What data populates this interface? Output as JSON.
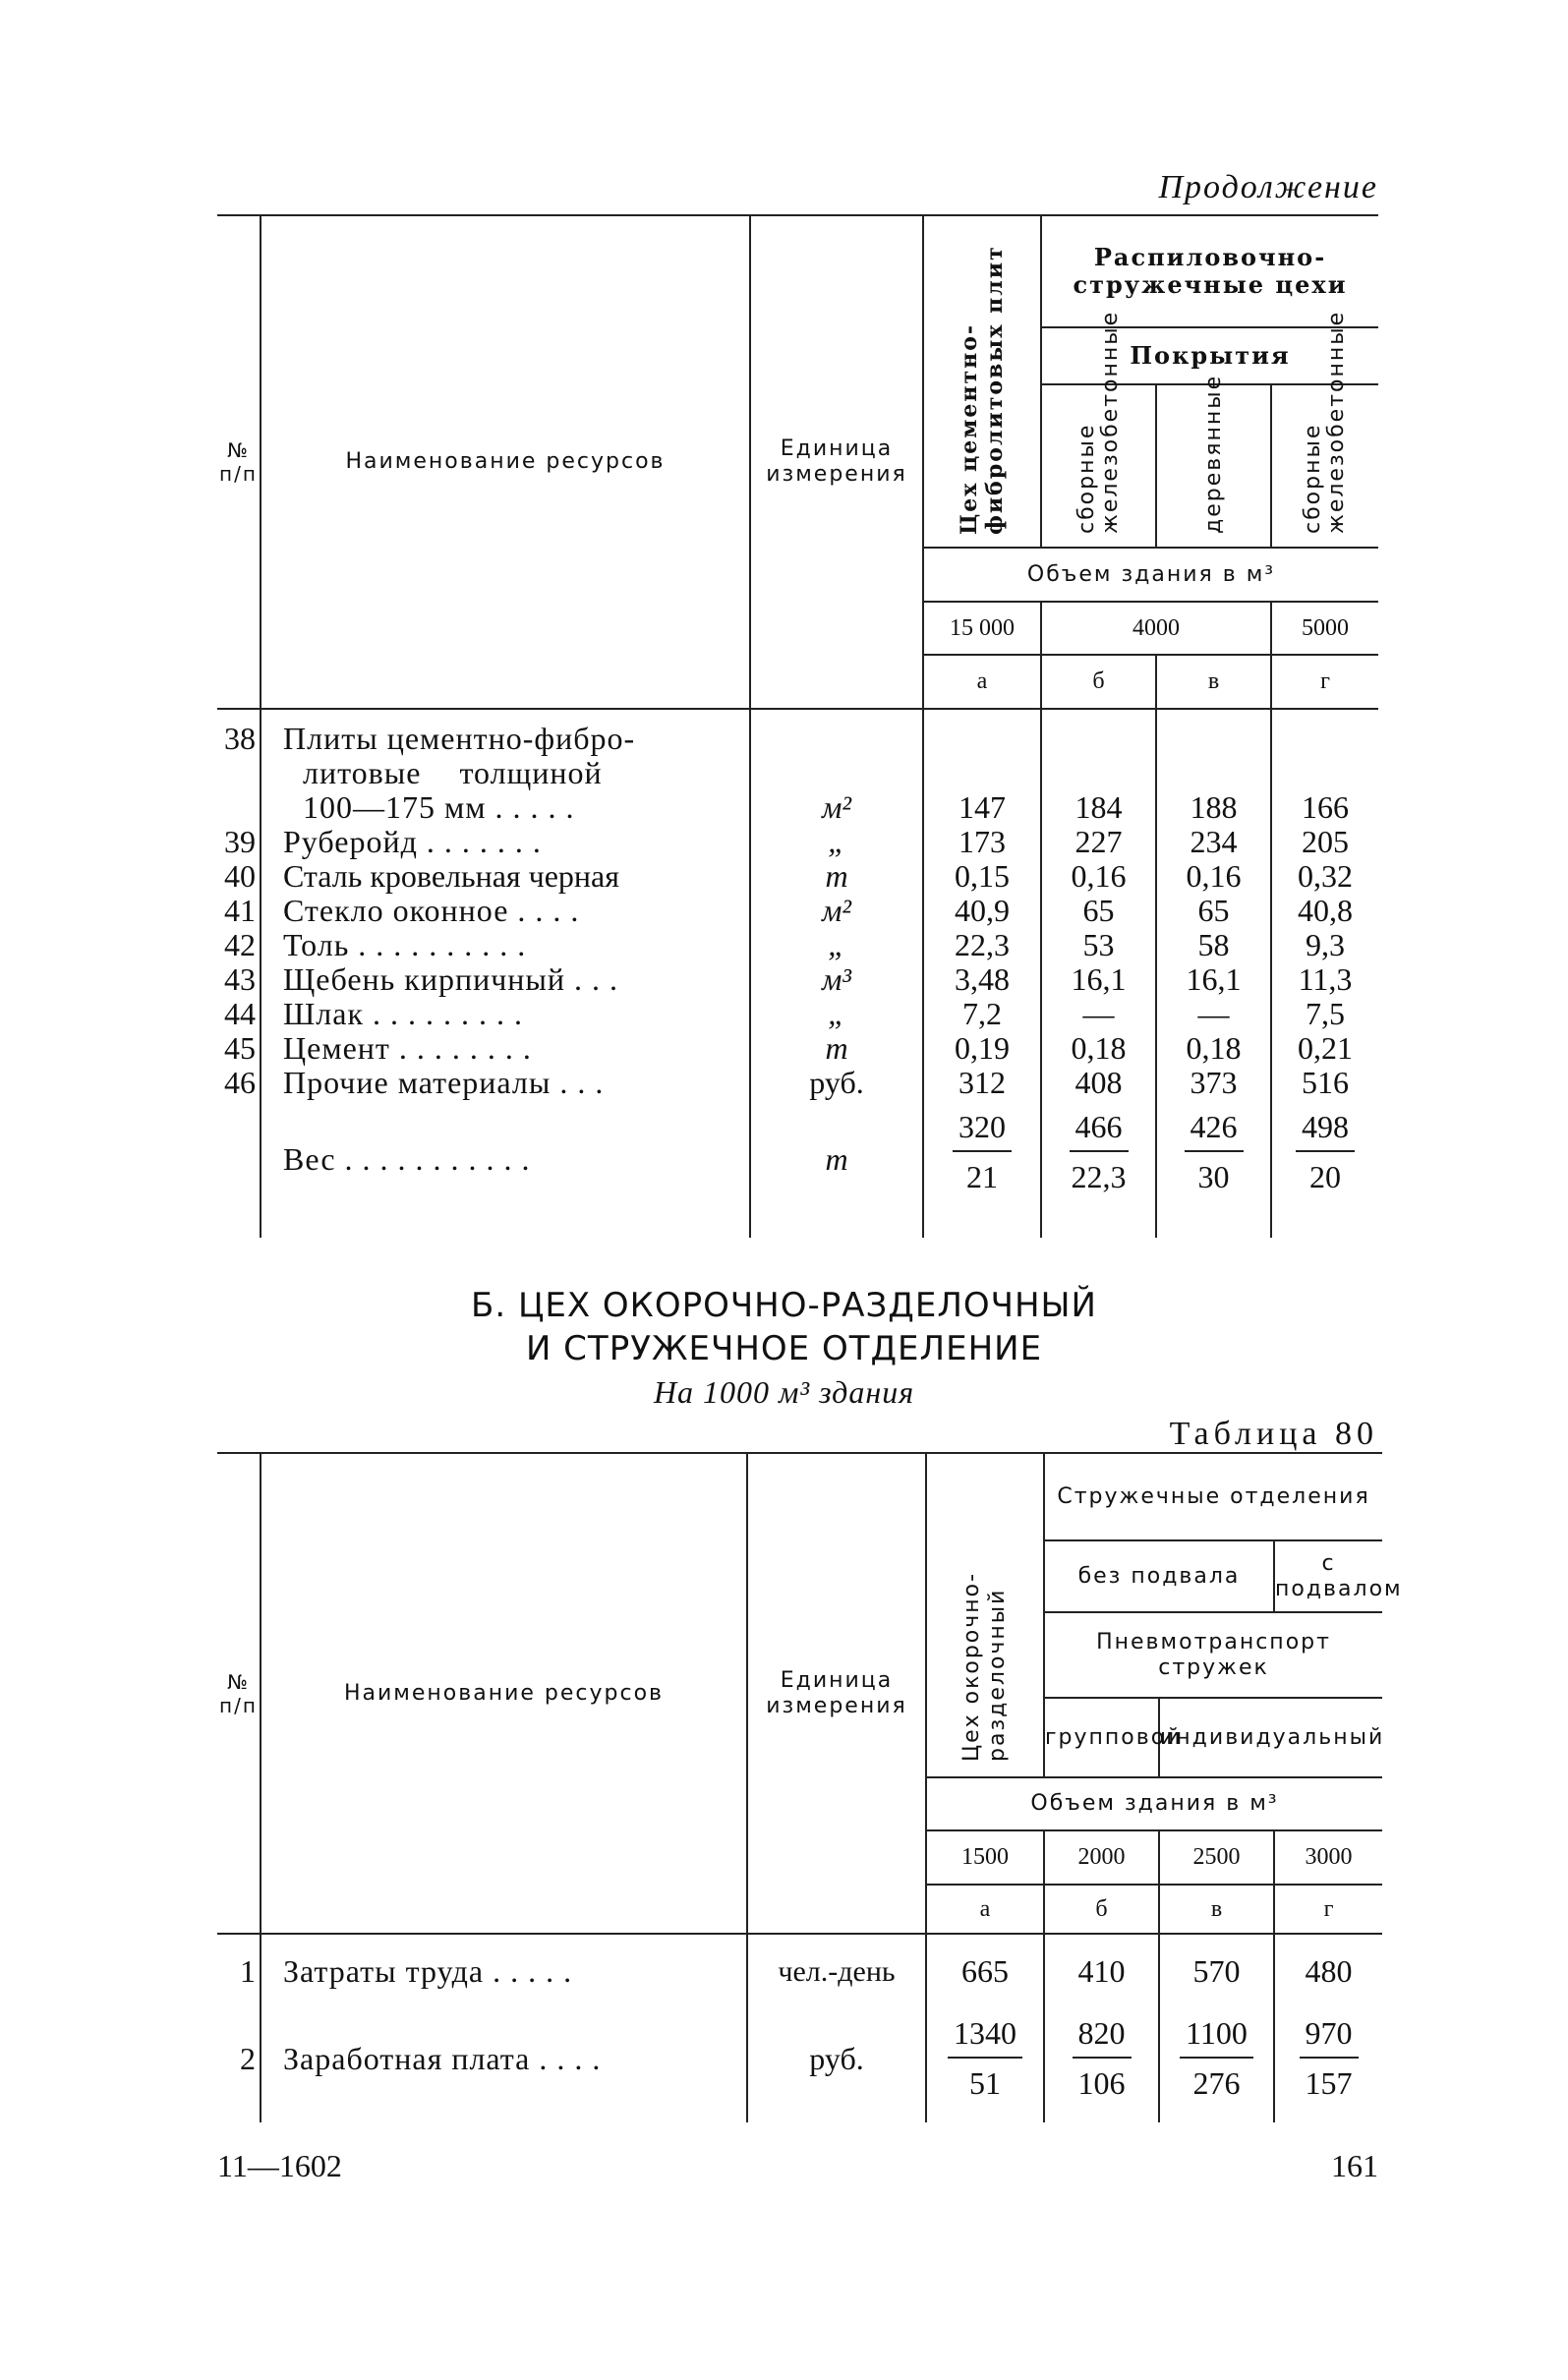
{
  "continuation": "Продолжение",
  "table1": {
    "headers": {
      "no": "№ п/п",
      "name": "Наименование ресурсов",
      "unit": "Единица измерения",
      "col_a": "Цех цементно-фибролитовых плит",
      "group": "Распиловочно-стружечные цехи",
      "subgroup": "Покрытия",
      "col_b": "сборные железобетонные",
      "col_c": "деревянные",
      "col_d": "сборные железобетонные",
      "volume_label": "Объем здания в м³",
      "vol_a": "15 000",
      "vol_bc": "4000",
      "vol_d": "5000",
      "letter_a": "а",
      "letter_b": "б",
      "letter_c": "в",
      "letter_d": "г"
    },
    "rows": [
      {
        "no": "38",
        "name_lines": [
          "Плиты цементно-фибро-",
          "литовые толщиной",
          "100—175 мм . . . . ."
        ],
        "unit": "м²",
        "a": "147",
        "b": "184",
        "c": "188",
        "d": "166"
      },
      {
        "no": "39",
        "name": "Руберойд . . . . . . .",
        "unit": "„",
        "a": "173",
        "b": "227",
        "c": "234",
        "d": "205"
      },
      {
        "no": "40",
        "name": "Сталь кровельная черная",
        "unit": "т",
        "a": "0,15",
        "b": "0,16",
        "c": "0,16",
        "d": "0,32"
      },
      {
        "no": "41",
        "name": "Стекло оконное . . . .",
        "unit": "м²",
        "a": "40,9",
        "b": "65",
        "c": "65",
        "d": "40,8"
      },
      {
        "no": "42",
        "name": "Толь . . . . . . . . . .",
        "unit": "„",
        "a": "22,3",
        "b": "53",
        "c": "58",
        "d": "9,3"
      },
      {
        "no": "43",
        "name": "Щебень кирпичный . . .",
        "unit": "м³",
        "a": "3,48",
        "b": "16,1",
        "c": "16,1",
        "d": "11,3"
      },
      {
        "no": "44",
        "name": "Шлак . . . . . . . . .",
        "unit": "„",
        "a": "7,2",
        "b": "—",
        "c": "—",
        "d": "7,5"
      },
      {
        "no": "45",
        "name": "Цемент . . . . . . . .",
        "unit": "т",
        "a": "0,19",
        "b": "0,18",
        "c": "0,18",
        "d": "0,21"
      },
      {
        "no": "46",
        "name": "Прочие материалы . . .",
        "unit": "руб.",
        "a": "312",
        "b": "408",
        "c": "373",
        "d": "516"
      }
    ],
    "weight": {
      "name": "Вес . . . . . . . . . . .",
      "unit": "т",
      "a": [
        "320",
        "21"
      ],
      "b": [
        "466",
        "22,3"
      ],
      "c": [
        "426",
        "30"
      ],
      "d": [
        "498",
        "20"
      ]
    }
  },
  "section": {
    "title_line1": "Б. ЦЕХ ОКОРОЧНО-РАЗДЕЛОЧНЫЙ",
    "title_line2": "И СТРУЖЕЧНОЕ ОТДЕЛЕНИЕ",
    "subtitle": "На 1000 м³ здания",
    "table_label": "Таблица 80"
  },
  "table2": {
    "headers": {
      "no": "№ п/п",
      "name": "Наименование ресурсов",
      "unit": "Единица измерения",
      "col_a": "Цех окорочно-разделочный",
      "group": "Стружечные отделения",
      "no_basement": "без подвала",
      "with_basement": "с подвалом",
      "pneumo": "Пневмотранспорт стружек",
      "group_type": "групповой",
      "individual": "индивидуальный",
      "volume_label": "Объем здания в м³",
      "vol_a": "1500",
      "vol_b": "2000",
      "vol_c": "2500",
      "vol_d": "3000",
      "letter_a": "а",
      "letter_b": "б",
      "letter_c": "в",
      "letter_d": "г"
    },
    "rows": [
      {
        "no": "1",
        "name": "Затраты труда . . . . .",
        "unit": "чел.-день",
        "a": "665",
        "b": "410",
        "c": "570",
        "d": "480"
      },
      {
        "no": "2",
        "name": "Заработная плата . . . .",
        "unit": "руб.",
        "a": [
          "1340",
          "51"
        ],
        "b": [
          "820",
          "106"
        ],
        "c": [
          "1100",
          "276"
        ],
        "d": [
          "970",
          "157"
        ]
      }
    ]
  },
  "footer": {
    "signature": "11—1602",
    "page_number": "161"
  }
}
